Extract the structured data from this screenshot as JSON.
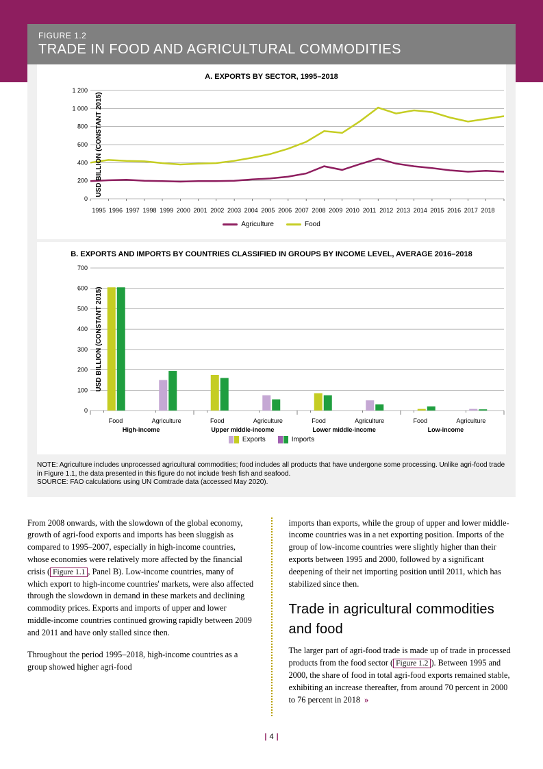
{
  "figure": {
    "number": "FIGURE 1.2",
    "title": "TRADE IN FOOD AND AGRICULTURAL COMMODITIES"
  },
  "chartA": {
    "title": "A. EXPORTS BY SECTOR, 1995–2018",
    "ylabel": "USD BILLION (CONSTANT 2015)",
    "ylim": [
      0,
      1200
    ],
    "ytick_step": 200,
    "yticks": [
      "0",
      "200",
      "400",
      "600",
      "800",
      "1 000",
      "1 200"
    ],
    "years": [
      "1995",
      "1996",
      "1997",
      "1998",
      "1999",
      "2000",
      "2001",
      "2002",
      "2003",
      "2004",
      "2005",
      "2006",
      "2007",
      "2008",
      "2009",
      "2010",
      "2011",
      "2012",
      "2013",
      "2014",
      "2015",
      "2016",
      "2017",
      "2018"
    ],
    "series": [
      {
        "name": "Agriculture",
        "color": "#8e1e5f",
        "values": [
          195,
          205,
          210,
          200,
          195,
          190,
          195,
          195,
          200,
          215,
          225,
          245,
          280,
          360,
          320,
          385,
          445,
          390,
          360,
          340,
          315,
          300,
          310,
          300
        ]
      },
      {
        "name": "Food",
        "color": "#c5cd23",
        "values": [
          400,
          430,
          420,
          415,
          395,
          380,
          390,
          395,
          420,
          455,
          495,
          555,
          630,
          750,
          730,
          860,
          1010,
          945,
          980,
          960,
          900,
          855,
          885,
          915
        ]
      }
    ],
    "legend": [
      {
        "label": "Agriculture",
        "color": "#8e1e5f"
      },
      {
        "label": "Food",
        "color": "#c5cd23"
      }
    ],
    "grid_color": "#707070",
    "background_color": "#ffffff"
  },
  "chartB": {
    "title": "B. EXPORTS AND IMPORTS BY COUNTRIES CLASSIFIED IN GROUPS BY INCOME LEVEL, AVERAGE 2016–2018",
    "ylabel": "USD BILLION (CONSTANT 2015)",
    "ylim": [
      0,
      700
    ],
    "ytick_step": 100,
    "yticks": [
      "0",
      "100",
      "200",
      "300",
      "400",
      "500",
      "600",
      "700"
    ],
    "groups": [
      "High-income",
      "Upper middle-income",
      "Lower middle-income",
      "Low-income"
    ],
    "sublabels": [
      "Food",
      "Agriculture"
    ],
    "exports_colors": [
      "#c5a8d4",
      "#c5cd23"
    ],
    "imports_colors": [
      "#a05fb0",
      "#1f9e3f"
    ],
    "data": [
      {
        "group": "High-income",
        "food": {
          "exports": 605,
          "imports": 605
        },
        "agriculture": {
          "exports": 150,
          "imports": 195
        }
      },
      {
        "group": "Upper middle-income",
        "food": {
          "exports": 175,
          "imports": 160
        },
        "agriculture": {
          "exports": 75,
          "imports": 55
        }
      },
      {
        "group": "Lower middle-income",
        "food": {
          "exports": 85,
          "imports": 75
        },
        "agriculture": {
          "exports": 50,
          "imports": 30
        }
      },
      {
        "group": "Low-income",
        "food": {
          "exports": 8,
          "imports": 20
        },
        "agriculture": {
          "exports": 8,
          "imports": 6
        }
      }
    ],
    "legend": [
      {
        "label": "Exports",
        "colors": [
          "#c5a8d4",
          "#c5cd23"
        ]
      },
      {
        "label": "Imports",
        "colors": [
          "#a05fb0",
          "#1f9e3f"
        ]
      }
    ],
    "grid_color": "#707070"
  },
  "note": "NOTE: Agriculture includes unprocessed agricultural commodities; food includes all products that have undergone some processing.  Unlike agri-food trade in Figure 1.1, the data presented in this figure do not include fresh fish and seafood.",
  "source": "SOURCE: FAO calculations using UN Comtrade data (accessed May 2020).",
  "body": {
    "col1": {
      "p1a": "From 2008 onwards, with the slowdown of the global economy, growth of agri-food exports and imports has been sluggish as compared to 1995–2007, especially in high-income countries, whose economies were relatively more affected by the financial crisis (",
      "figref1": "Figure 1.1",
      "p1b": ", Panel B). Low-income countries, many of which export to high-income countries' markets, were also affected through the slowdown in demand in these markets and declining commodity prices. Exports and imports of upper and lower middle-income countries continued growing rapidly between 2009 and 2011 and have only stalled since then.",
      "p2": "Throughout the period 1995–2018, high-income countries as a group showed higher agri-food"
    },
    "col2": {
      "p1": "imports than exports, while the group of upper and lower middle-income countries was in a net exporting position. Imports of the group of low-income countries were slightly higher than their exports between 1995 and 2000, followed by a significant deepening of their net importing position until 2011, which has stabilized since then.",
      "h": "Trade in agricultural commodities and food",
      "p2a": "The larger part of agri-food trade is made up of trade in processed products from the food sector (",
      "figref2": "Figure 1.2",
      "p2b": "). Between 1995 and 2000, the share of food in total agri-food exports remained stable, exhibiting an increase thereafter, from around 70 percent in 2000 to 76 percent in 2018"
    }
  },
  "page_number": "4"
}
